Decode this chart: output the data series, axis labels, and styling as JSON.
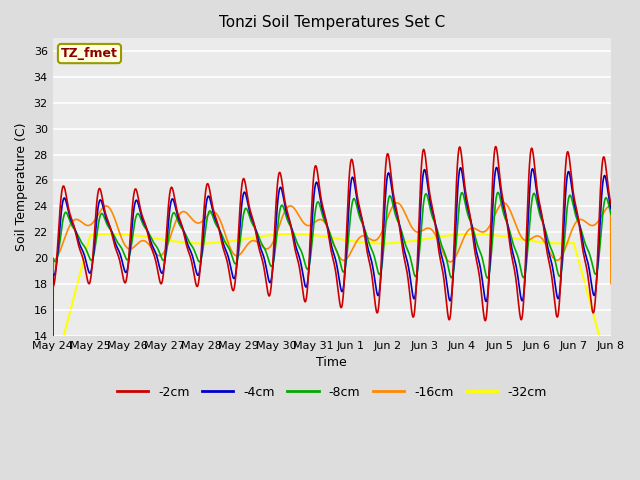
{
  "title": "Tonzi Soil Temperatures Set C",
  "xlabel": "Time",
  "ylabel": "Soil Temperature (C)",
  "ylim": [
    14,
    37
  ],
  "yticks": [
    14,
    16,
    18,
    20,
    22,
    24,
    26,
    28,
    30,
    32,
    34,
    36
  ],
  "x_labels": [
    "May 24",
    "May 25",
    "May 26",
    "May 27",
    "May 28",
    "May 29",
    "May 30",
    "May 31",
    "Jun 1",
    "Jun 2",
    "Jun 3",
    "Jun 4",
    "Jun 5",
    "Jun 6",
    "Jun 7",
    "Jun 8"
  ],
  "annotation_text": "TZ_fmet",
  "annotation_color": "#8B0000",
  "annotation_bg": "#FFFFE0",
  "annotation_border": "#999900",
  "line_colors": {
    "-2cm": "#CC0000",
    "-4cm": "#0000CC",
    "-8cm": "#00AA00",
    "-16cm": "#FF8800",
    "-32cm": "#FFFF00"
  },
  "legend_labels": [
    "-2cm",
    "-4cm",
    "-8cm",
    "-16cm",
    "-32cm"
  ],
  "bg_color": "#DDDDDD",
  "plot_bg": "#EBEBEB",
  "n_days": 15.5,
  "samples_per_day": 96
}
